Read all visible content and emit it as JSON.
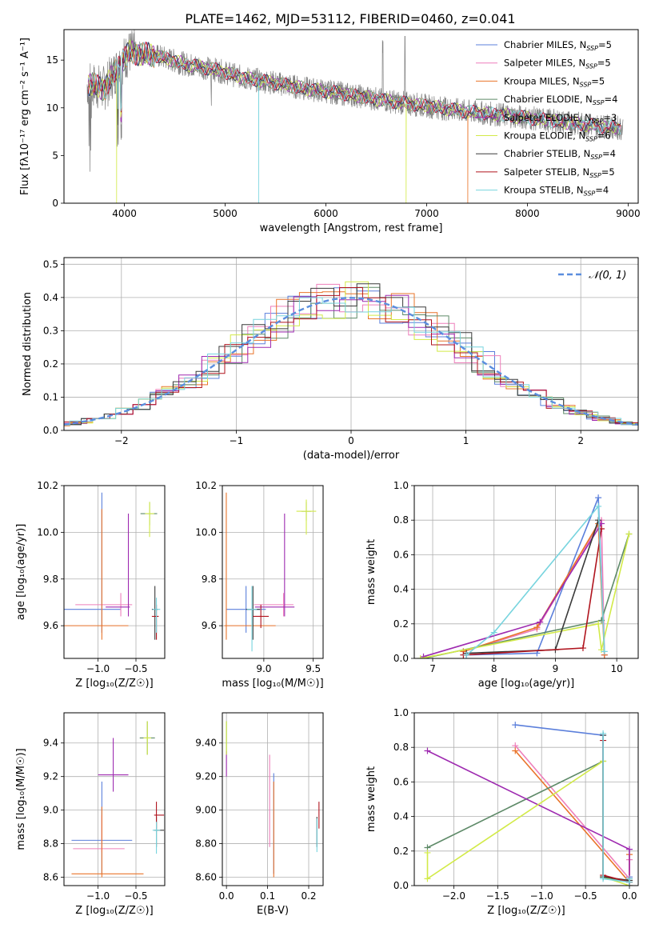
{
  "figure": {
    "title": "PLATE=1462, MJD=53112, FIBERID=0460, z=0.041"
  },
  "chart_data": [
    {
      "id": "spectrum",
      "type": "line",
      "xlabel": "wavelength [Angstrom, rest frame]",
      "ylabel": "Flux [fλ10⁻¹⁷ erg cm⁻² s⁻¹ A⁻¹]",
      "xlim": [
        3400,
        9100
      ],
      "ylim": [
        0,
        18.2
      ],
      "xticks": [
        4000,
        5000,
        6000,
        7000,
        8000,
        9000
      ],
      "yticks": [
        0,
        5,
        10,
        15
      ],
      "grid": false,
      "legend_position": "top-right",
      "continuum_points": [
        [
          3650,
          12.5
        ],
        [
          3800,
          12.0
        ],
        [
          3950,
          14.5
        ],
        [
          4050,
          15.8
        ],
        [
          4300,
          15.5
        ],
        [
          4600,
          14.6
        ],
        [
          4900,
          14.0
        ],
        [
          5200,
          13.1
        ],
        [
          5500,
          12.6
        ],
        [
          5800,
          12.0
        ],
        [
          6100,
          11.6
        ],
        [
          6400,
          11.1
        ],
        [
          6700,
          10.6
        ],
        [
          7000,
          10.2
        ],
        [
          7400,
          9.6
        ],
        [
          7800,
          9.2
        ],
        [
          8200,
          8.7
        ],
        [
          8600,
          8.2
        ],
        [
          8900,
          7.9
        ]
      ],
      "data_range": [
        3630,
        8950
      ],
      "model_drops": [
        {
          "series": "Kroupa MILES",
          "x": 7410
        },
        {
          "series": "Kroupa ELODIE",
          "x": 6795
        },
        {
          "series": "Kroupa STELIB",
          "x": 5330
        },
        {
          "series": "Kroupa ELODIE",
          "x": 3920
        }
      ],
      "series": [
        {
          "name": "Chabrier MILES, N",
          "sub": "SSP",
          "suffix": "=5",
          "color": "#5b7fdb"
        },
        {
          "name": "Salpeter MILES, N",
          "sub": "SSP",
          "suffix": "=5",
          "color": "#ee7fbb"
        },
        {
          "name": "Kroupa MILES, N",
          "sub": "SSP",
          "suffix": "=5",
          "color": "#e9742a"
        },
        {
          "name": "Chabrier ELODIE, N",
          "sub": "SSP",
          "suffix": "=4",
          "color": "#5e8a68"
        },
        {
          "name": "Salpeter ELODIE, N",
          "sub": "SSP",
          "suffix": "=3",
          "color": "#9e2ab0"
        },
        {
          "name": "Kroupa ELODIE, N",
          "sub": "SSP",
          "suffix": "=6",
          "color": "#d2ea48"
        },
        {
          "name": "Chabrier STELIB, N",
          "sub": "SSP",
          "suffix": "=4",
          "color": "#3a3a3a"
        },
        {
          "name": "Salpeter STELIB, N",
          "sub": "SSP",
          "suffix": "=5",
          "color": "#b0141e"
        },
        {
          "name": "Kroupa STELIB, N",
          "sub": "SSP",
          "suffix": "=4",
          "color": "#77d4de"
        }
      ],
      "data_color": "#808080"
    },
    {
      "id": "residuals",
      "type": "histogram",
      "xlabel": "(data-model)/error",
      "ylabel": "Normed distribution",
      "xlim": [
        -2.5,
        2.5
      ],
      "ylim": [
        0,
        0.52
      ],
      "xticks": [
        -2,
        -1,
        0,
        1,
        2
      ],
      "yticks": [
        0.0,
        0.1,
        0.2,
        0.3,
        0.4,
        0.5
      ],
      "grid": true,
      "bin_width": 0.2,
      "reference": {
        "label": "𝒩(0, 1)",
        "mean": 0,
        "sigma": 1,
        "color": "#5b8ede"
      },
      "legend_position": "top-right"
    },
    {
      "id": "age_vs_Z",
      "type": "errorbar",
      "xlabel": "Z [log₁₀(Z/Z☉)]",
      "ylabel": "age  [log₁₀(age/yr)]",
      "xlim": [
        -1.45,
        -0.12
      ],
      "ylim": [
        9.46,
        10.2
      ],
      "xticks": [
        -1.0,
        -0.5
      ],
      "yticks": [
        9.6,
        9.8,
        10.0,
        10.2
      ],
      "grid": true,
      "points": [
        {
          "series": "Chabrier MILES",
          "x": -0.95,
          "y": 9.67,
          "xerr": [
            0.5,
            0.25
          ],
          "yerr": [
            0.1,
            0.5
          ]
        },
        {
          "series": "Salpeter MILES",
          "x": -0.7,
          "y": 9.69,
          "xerr": [
            0.6,
            0.15
          ],
          "yerr": [
            0.05,
            0.05
          ]
        },
        {
          "series": "Kroupa MILES",
          "x": -0.95,
          "y": 9.6,
          "xerr": [
            0.5,
            0.35
          ],
          "yerr": [
            0.06,
            0.5
          ]
        },
        {
          "series": "Chabrier ELODIE",
          "x": -0.32,
          "y": 10.08,
          "xerr": [
            0.12,
            0.1
          ],
          "yerr": [
            0.05,
            0.05
          ]
        },
        {
          "series": "Salpeter ELODIE",
          "x": -0.6,
          "y": 9.68,
          "xerr": [
            0.3,
            0.02
          ],
          "yerr": [
            0.04,
            0.4
          ]
        },
        {
          "series": "Kroupa ELODIE",
          "x": -0.32,
          "y": 10.08,
          "xerr": [
            0.06,
            0.06
          ],
          "yerr": [
            0.1,
            0.05
          ]
        },
        {
          "series": "Chabrier STELIB",
          "x": -0.25,
          "y": 9.67,
          "xerr": [
            0.04,
            0.04
          ],
          "yerr": [
            0.13,
            0.1
          ]
        },
        {
          "series": "Salpeter STELIB",
          "x": -0.23,
          "y": 9.64,
          "xerr": [
            0.06,
            0.03
          ],
          "yerr": [
            0.1,
            0.05
          ]
        },
        {
          "series": "Kroupa STELIB",
          "x": -0.23,
          "y": 9.67,
          "xerr": [
            0.05,
            0.05
          ],
          "yerr": [
            0.1,
            0.05
          ]
        }
      ]
    },
    {
      "id": "age_vs_mass",
      "type": "errorbar",
      "xlabel": "mass [log₁₀(M/M☉)]",
      "ylabel": "",
      "xlim": [
        8.58,
        9.6
      ],
      "ylim": [
        9.46,
        10.2
      ],
      "xticks": [
        9.0,
        9.5
      ],
      "yticks": [
        9.6,
        9.8,
        10.0,
        10.2
      ],
      "grid": true,
      "points": [
        {
          "series": "Chabrier MILES",
          "x": 8.82,
          "y": 9.67,
          "xerr": [
            0.2,
            0.2
          ],
          "yerr": [
            0.1,
            0.1
          ]
        },
        {
          "series": "Salpeter MILES",
          "x": 9.2,
          "y": 9.69,
          "xerr": [
            0.3,
            0.1
          ],
          "yerr": [
            0.05,
            0.05
          ]
        },
        {
          "series": "Kroupa MILES",
          "x": 8.62,
          "y": 9.6,
          "xerr": [
            0.02,
            0.5
          ],
          "yerr": [
            0.06,
            0.57
          ]
        },
        {
          "series": "Chabrier ELODIE",
          "x": 9.43,
          "y": 10.09,
          "xerr": [
            0.05,
            0.05
          ],
          "yerr": [
            0.04,
            0.04
          ]
        },
        {
          "series": "Salpeter ELODIE",
          "x": 9.21,
          "y": 9.68,
          "xerr": [
            0.3,
            0.1
          ],
          "yerr": [
            0.04,
            0.4
          ]
        },
        {
          "series": "Kroupa ELODIE",
          "x": 9.43,
          "y": 10.09,
          "xerr": [
            0.1,
            0.1
          ],
          "yerr": [
            0.1,
            0.05
          ]
        },
        {
          "series": "Chabrier STELIB",
          "x": 8.89,
          "y": 9.67,
          "xerr": [
            0.07,
            0.07
          ],
          "yerr": [
            0.13,
            0.1
          ]
        },
        {
          "series": "Salpeter STELIB",
          "x": 8.97,
          "y": 9.64,
          "xerr": [
            0.08,
            0.08
          ],
          "yerr": [
            0.05,
            0.05
          ]
        },
        {
          "series": "Kroupa STELIB",
          "x": 8.88,
          "y": 9.67,
          "xerr": [
            0.05,
            0.05
          ],
          "yerr": [
            0.18,
            0.1
          ]
        }
      ]
    },
    {
      "id": "weight_vs_age",
      "type": "line",
      "xlabel": "age  [log₁₀(age/yr)]",
      "ylabel": "mass weight",
      "xlim": [
        6.7,
        10.35
      ],
      "ylim": [
        0,
        1.0
      ],
      "xticks": [
        7,
        8,
        9,
        10
      ],
      "yticks": [
        0.0,
        0.2,
        0.4,
        0.6,
        0.8,
        1.0
      ],
      "grid": true,
      "series": [
        {
          "name": "Chabrier MILES",
          "x": [
            7.55,
            8.7,
            9.7,
            9.8
          ],
          "y": [
            0.02,
            0.03,
            0.93,
            0.02
          ]
        },
        {
          "name": "Salpeter MILES",
          "x": [
            7.5,
            8.7,
            9.75,
            9.8
          ],
          "y": [
            0.04,
            0.17,
            0.8,
            0.02
          ]
        },
        {
          "name": "Kroupa MILES",
          "x": [
            7.5,
            8.7,
            9.7,
            9.8
          ],
          "y": [
            0.04,
            0.18,
            0.78,
            0.02
          ]
        },
        {
          "name": "Chabrier ELODIE",
          "x": [
            6.85,
            9.75,
            10.2
          ],
          "y": [
            0.0,
            0.22,
            0.72
          ]
        },
        {
          "name": "Salpeter ELODIE",
          "x": [
            6.85,
            8.75,
            9.75
          ],
          "y": [
            0.01,
            0.21,
            0.78
          ]
        },
        {
          "name": "Kroupa ELODIE",
          "x": [
            6.8,
            9.7,
            9.75,
            10.2
          ],
          "y": [
            0.0,
            0.2,
            0.05,
            0.72
          ]
        },
        {
          "name": "Chabrier STELIB",
          "x": [
            7.55,
            9.0,
            9.7
          ],
          "y": [
            0.03,
            0.05,
            0.8
          ]
        },
        {
          "name": "Salpeter STELIB",
          "x": [
            7.5,
            9.45,
            9.75
          ],
          "y": [
            0.02,
            0.06,
            0.75
          ]
        },
        {
          "name": "Kroupa STELIB",
          "x": [
            7.55,
            8.0,
            9.7,
            9.8
          ],
          "y": [
            0.02,
            0.15,
            0.88,
            0.04
          ]
        }
      ]
    },
    {
      "id": "mass_vs_Z",
      "type": "errorbar",
      "xlabel": "Z [log₁₀(Z/Z☉)]",
      "ylabel": "mass [log₁₀(M/M☉)]",
      "xlim": [
        -1.45,
        -0.12
      ],
      "ylim": [
        8.55,
        9.58
      ],
      "xticks": [
        -1.0,
        -0.5
      ],
      "yticks": [
        8.6,
        8.8,
        9.0,
        9.2,
        9.4
      ],
      "grid": true,
      "points": [
        {
          "series": "Chabrier MILES",
          "x": -0.95,
          "y": 8.82,
          "xerr": [
            0.4,
            0.4
          ],
          "yerr": [
            0.2,
            0.35
          ]
        },
        {
          "series": "Salpeter MILES",
          "x": -0.95,
          "y": 8.77,
          "xerr": [
            0.38,
            0.3
          ],
          "yerr": [
            0.02,
            0.2
          ]
        },
        {
          "series": "Kroupa MILES",
          "x": -0.95,
          "y": 8.62,
          "xerr": [
            0.4,
            0.55
          ],
          "yerr": [
            0.02,
            0.4
          ]
        },
        {
          "series": "Chabrier ELODIE",
          "x": -0.35,
          "y": 9.43,
          "xerr": [
            0.1,
            0.1
          ],
          "yerr": [
            0.1,
            0.1
          ]
        },
        {
          "series": "Salpeter ELODIE",
          "x": -0.8,
          "y": 9.21,
          "xerr": [
            0.2,
            0.2
          ],
          "yerr": [
            0.1,
            0.22
          ]
        },
        {
          "series": "Kroupa ELODIE",
          "x": -0.35,
          "y": 9.43,
          "xerr": [
            0.05,
            0.05
          ],
          "yerr": [
            0.1,
            0.1
          ]
        },
        {
          "series": "Chabrier STELIB",
          "x": -0.23,
          "y": 8.88,
          "xerr": [
            0.03,
            0.1
          ],
          "yerr": [
            0.1,
            0.08
          ]
        },
        {
          "series": "Salpeter STELIB",
          "x": -0.23,
          "y": 8.97,
          "xerr": [
            0.03,
            0.1
          ],
          "yerr": [
            0.08,
            0.08
          ]
        },
        {
          "series": "Kroupa STELIB",
          "x": -0.23,
          "y": 8.88,
          "xerr": [
            0.05,
            0.05
          ],
          "yerr": [
            0.14,
            0.05
          ]
        }
      ]
    },
    {
      "id": "mass_vs_ebv",
      "type": "errorbar",
      "xlabel": "E(B-V)",
      "ylabel": "",
      "xlim": [
        -0.01,
        0.235
      ],
      "ylim": [
        8.55,
        9.58
      ],
      "xticks": [
        0.0,
        0.1,
        0.2
      ],
      "yticks": [
        8.6,
        8.8,
        9.0,
        9.2,
        9.4
      ],
      "grid": true,
      "points": [
        {
          "series": "Chabrier MILES",
          "x": 0.115,
          "y": 8.82,
          "xerr": [
            0,
            0
          ],
          "yerr": [
            0.2,
            0.4
          ]
        },
        {
          "series": "Salpeter MILES",
          "x": 0.105,
          "y": 8.9,
          "xerr": [
            0,
            0
          ],
          "yerr": [
            0.12,
            0.43
          ]
        },
        {
          "series": "Kroupa MILES",
          "x": 0.115,
          "y": 8.62,
          "xerr": [
            0,
            0
          ],
          "yerr": [
            0.02,
            0.55
          ]
        },
        {
          "series": "Chabrier ELODIE",
          "x": 0.0,
          "y": 9.43,
          "xerr": [
            0,
            0
          ],
          "yerr": [
            0.1,
            0.1
          ]
        },
        {
          "series": "Salpeter ELODIE",
          "x": 0.0,
          "y": 9.25,
          "xerr": [
            0,
            0
          ],
          "yerr": [
            0.05,
            0.1
          ]
        },
        {
          "series": "Kroupa ELODIE",
          "x": 0.0,
          "y": 9.43,
          "xerr": [
            0,
            0
          ],
          "yerr": [
            0.1,
            0.1
          ]
        },
        {
          "series": "Chabrier STELIB",
          "x": 0.22,
          "y": 8.88,
          "xerr": [
            0,
            0
          ],
          "yerr": [
            0.1,
            0.08
          ]
        },
        {
          "series": "Salpeter STELIB",
          "x": 0.225,
          "y": 8.97,
          "xerr": [
            0,
            0
          ],
          "yerr": [
            0.08,
            0.08
          ]
        },
        {
          "series": "Kroupa STELIB",
          "x": 0.22,
          "y": 8.85,
          "xerr": [
            0,
            0
          ],
          "yerr": [
            0.1,
            0.1
          ]
        }
      ]
    },
    {
      "id": "weight_vs_Z",
      "type": "line",
      "xlabel": "Z [log₁₀(Z/Z☉)]",
      "ylabel": "mass weight",
      "xlim": [
        -2.45,
        0.1
      ],
      "ylim": [
        0,
        1.0
      ],
      "xticks": [
        -2.0,
        -1.5,
        -1.0,
        -0.5,
        0.0
      ],
      "yticks": [
        0.0,
        0.2,
        0.4,
        0.6,
        0.8,
        1.0
      ],
      "grid": true,
      "series": [
        {
          "name": "Chabrier MILES",
          "x": [
            -1.3,
            -0.3,
            -0.3,
            0.0,
            0.0
          ],
          "y": [
            0.93,
            0.87,
            0.05,
            0.02,
            0.05
          ]
        },
        {
          "name": "Salpeter MILES",
          "x": [
            -1.3,
            0.0,
            0.0
          ],
          "y": [
            0.81,
            0.04,
            0.15
          ]
        },
        {
          "name": "Kroupa MILES",
          "x": [
            -1.3,
            0.0,
            0.0
          ],
          "y": [
            0.78,
            0.02,
            0.18
          ]
        },
        {
          "name": "Chabrier ELODIE",
          "x": [
            -2.3,
            -0.3,
            -0.3,
            0.0
          ],
          "y": [
            0.22,
            0.72,
            0.05,
            0.02
          ]
        },
        {
          "name": "Salpeter ELODIE",
          "x": [
            -2.3,
            0.0,
            0.0
          ],
          "y": [
            0.78,
            0.21,
            0.0
          ]
        },
        {
          "name": "Kroupa ELODIE",
          "x": [
            -2.3,
            -2.3,
            -0.3,
            -0.3,
            0.0
          ],
          "y": [
            0.19,
            0.04,
            0.72,
            0.05,
            0.0
          ]
        },
        {
          "name": "Chabrier STELIB",
          "x": [
            -0.3,
            -0.3,
            0.0
          ],
          "y": [
            0.87,
            0.05,
            0.03
          ]
        },
        {
          "name": "Salpeter STELIB",
          "x": [
            -0.3,
            -0.3,
            0.0
          ],
          "y": [
            0.84,
            0.06,
            0.02
          ]
        },
        {
          "name": "Kroupa STELIB",
          "x": [
            -0.3,
            -0.3,
            0.0,
            0.0
          ],
          "y": [
            0.88,
            0.04,
            0.02,
            0.04
          ]
        }
      ]
    }
  ]
}
